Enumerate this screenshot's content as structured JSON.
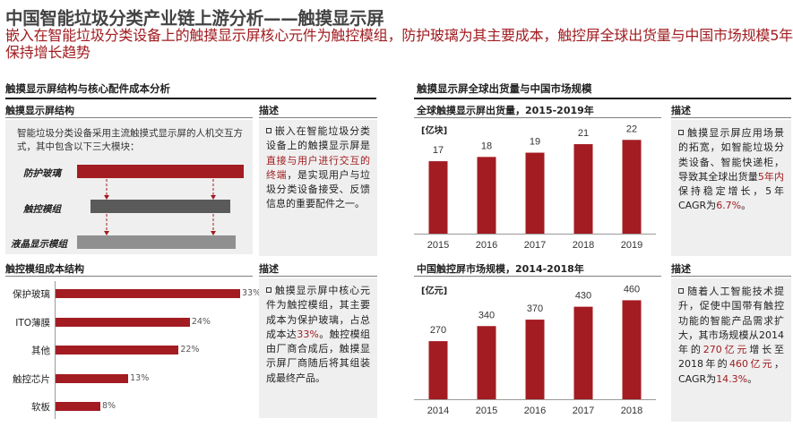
{
  "page": {
    "title": "中国智能垃圾分类产业链上游分析——触摸显示屏",
    "subtitle": "嵌入在智能垃圾分类设备上的触摸显示屏核心元件为触控模组，防护玻璃为其主要成本，触控屏全球出货量与中国市场规模5年保持增长趋势"
  },
  "left_section": {
    "title": "触摸显示屏结构与核心配件成本分析",
    "structure": {
      "heading": "触摸显示屏结构",
      "intro": "智能垃圾分类设备采用主流触摸式显示屏的人机交互方式，其中包含以下三大模块：",
      "modules": [
        "防护玻璃",
        "触控模组",
        "液晶显示模组"
      ],
      "colors": [
        "#a31c22",
        "#5a5a5a",
        "#8f8f8f"
      ]
    },
    "structure_desc": {
      "heading": "描述",
      "text_pre": "嵌入在智能垃圾分类设备上的触摸显示屏是",
      "text_hl": "直接与用户进行交互的终端",
      "text_post": "，是实现用户与垃圾分类设备接受、反馈信息的重要配件之一。"
    },
    "cost": {
      "heading": "触控模组成本结构",
      "items": [
        {
          "label": "保护玻璃",
          "value": 33,
          "value_label": "33%"
        },
        {
          "label": "ITO薄膜",
          "value": 24,
          "value_label": "24%"
        },
        {
          "label": "其他",
          "value": 22,
          "value_label": "22%"
        },
        {
          "label": "触控芯片",
          "value": 13,
          "value_label": "13%"
        },
        {
          "label": "软板",
          "value": 8,
          "value_label": "8%"
        }
      ]
    },
    "cost_desc": {
      "heading": "描述",
      "text_pre": "触摸显示屏中核心元件为触控模组，其主要成本为保护玻璃，占总成本达",
      "text_hl": "33%",
      "text_post": "。触控模组由厂商合成后，触摸显示屏厂商随后将其组装成最终产品。"
    }
  },
  "right_section": {
    "title": "触摸显示屏全球出货量与中国市场规模",
    "shipment_desc": {
      "heading": "描述",
      "text_pre": "触摸显示屏应用场景的拓宽，如智能垃圾分类设备、智能快递柜，导致其全球出货量",
      "text_hl1": "5年内",
      "text_mid": "保持稳定增长，5年CAGR为",
      "text_hl2": "6.7%",
      "text_post": "。"
    },
    "market_desc": {
      "heading": "描述",
      "text_pre": "随着人工智能技术提升，促使中国带有触控功能的智能产品需求扩大，其市场规模从2014年的",
      "text_hl1": "270亿元",
      "text_mid1": "增长至2018年的",
      "text_hl2": "460亿元",
      "text_mid2": "，CAGR为",
      "text_hl3": "14.3%",
      "text_post": "。"
    }
  },
  "chart_data": [
    {
      "type": "bar",
      "title": "全球触摸显示屏出货量，2015-2019年",
      "unit": "[亿块]",
      "categories": [
        "2015",
        "2016",
        "2017",
        "2018",
        "2019"
      ],
      "values": [
        17,
        18,
        19,
        21,
        22
      ],
      "ylim": [
        0,
        25
      ],
      "color": "#a31c22"
    },
    {
      "type": "bar",
      "title": "中国触控屏市场规模，2014-2018年",
      "unit": "[亿元]",
      "categories": [
        "2014",
        "2015",
        "2016",
        "2017",
        "2018"
      ],
      "values": [
        270,
        340,
        370,
        430,
        460
      ],
      "ylim": [
        0,
        520
      ],
      "color": "#a31c22"
    }
  ]
}
